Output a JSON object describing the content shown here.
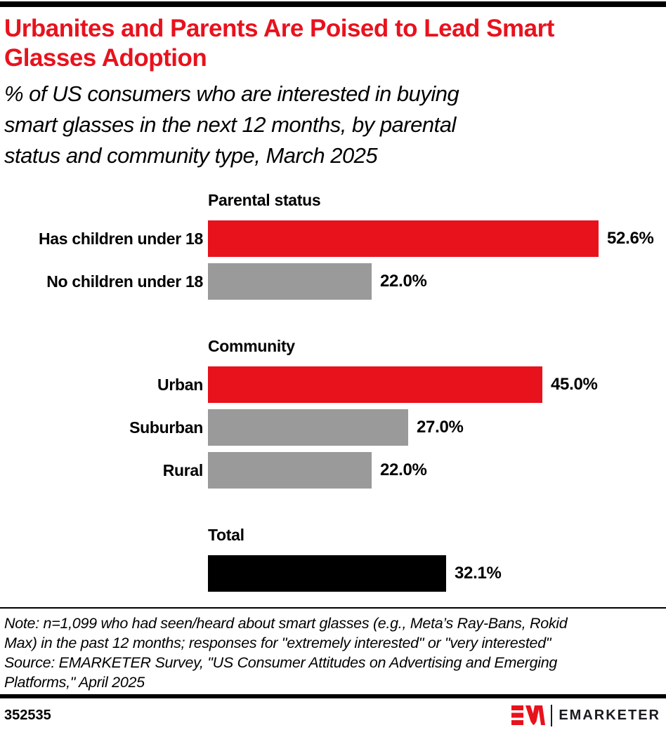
{
  "header": {
    "title_lines": [
      "Urbanites and Parents Are Poised to Lead Smart",
      "Glasses Adoption"
    ],
    "subtitle_lines": [
      "% of US consumers who are interested in buying",
      "smart glasses in the next 12 months, by parental",
      "status and community type, March 2025"
    ]
  },
  "chart_data": {
    "type": "bar",
    "orientation": "horizontal",
    "title": "Urbanites and Parents Are Poised to Lead Smart Glasses Adoption",
    "subtitle": "% of US consumers who are interested in buying smart glasses in the next 12 months, by parental status and community type, March 2025",
    "value_unit": "%",
    "xlim": [
      0,
      56
    ],
    "grid": false,
    "legend": false,
    "colors": {
      "red": "#e8121d",
      "gray": "#9a9a9a",
      "black": "#000000"
    },
    "groups": [
      {
        "title": "Parental status",
        "bars": [
          {
            "label": "Has children under 18",
            "value": 52.6,
            "value_label": "52.6%",
            "color": "red"
          },
          {
            "label": "No children under 18",
            "value": 22.0,
            "value_label": "22.0%",
            "color": "gray"
          }
        ]
      },
      {
        "title": "Community",
        "bars": [
          {
            "label": "Urban",
            "value": 45.0,
            "value_label": "45.0%",
            "color": "red"
          },
          {
            "label": "Suburban",
            "value": 27.0,
            "value_label": "27.0%",
            "color": "gray"
          },
          {
            "label": "Rural",
            "value": 22.0,
            "value_label": "22.0%",
            "color": "gray"
          }
        ]
      },
      {
        "title": "Total",
        "bars": [
          {
            "label": "",
            "value": 32.1,
            "value_label": "32.1%",
            "color": "black"
          }
        ]
      }
    ]
  },
  "footer": {
    "note_lines": [
      "Note: n=1,099 who had seen/heard about smart glasses (e.g., Meta’s Ray-Bans, Rokid",
      "Max) in the past 12 months; responses for \"extremely interested\" or \"very interested\""
    ],
    "source_lines": [
      "Source: EMARKETER Survey, \"US Consumer Attitudes on Advertising and Emerging",
      "Platforms,\" April 2025"
    ],
    "chart_id": "352535",
    "brand": "EMARKETER"
  }
}
